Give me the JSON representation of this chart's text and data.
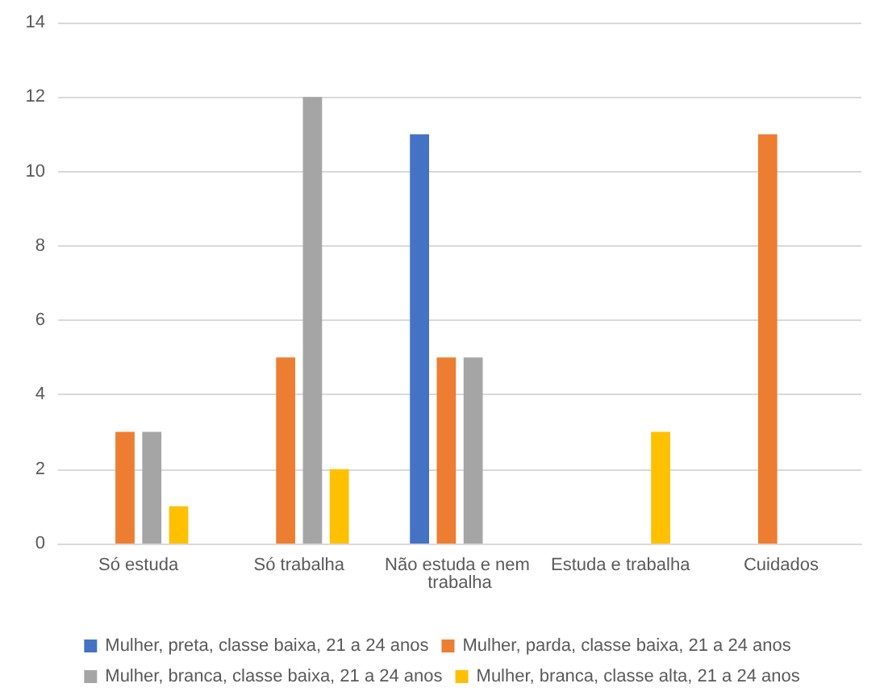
{
  "chart_data": {
    "type": "bar",
    "categories": [
      "Só estuda",
      "Só trabalha",
      "Não estuda e nem trabalha",
      "Estuda e trabalha",
      "Cuidados"
    ],
    "series": [
      {
        "name": "Mulher, preta, classe baixa, 21 a 24 anos",
        "color": "#4472c4",
        "values": [
          0,
          0,
          11,
          0,
          0
        ]
      },
      {
        "name": "Mulher, parda, classe baixa, 21 a 24 anos",
        "color": "#ed7d31",
        "values": [
          3,
          5,
          5,
          0,
          11
        ]
      },
      {
        "name": "Mulher, branca, classe baixa, 21 a 24 anos",
        "color": "#a5a5a5",
        "values": [
          3,
          12,
          5,
          0,
          0
        ]
      },
      {
        "name": "Mulher, branca, classe alta, 21 a 24 anos",
        "color": "#ffc000",
        "values": [
          1,
          2,
          0,
          3,
          0
        ]
      }
    ],
    "ylim": [
      0,
      14
    ],
    "yticks": [
      0,
      2,
      4,
      6,
      8,
      10,
      12,
      14
    ],
    "grid": "y",
    "legend": "bottom"
  }
}
